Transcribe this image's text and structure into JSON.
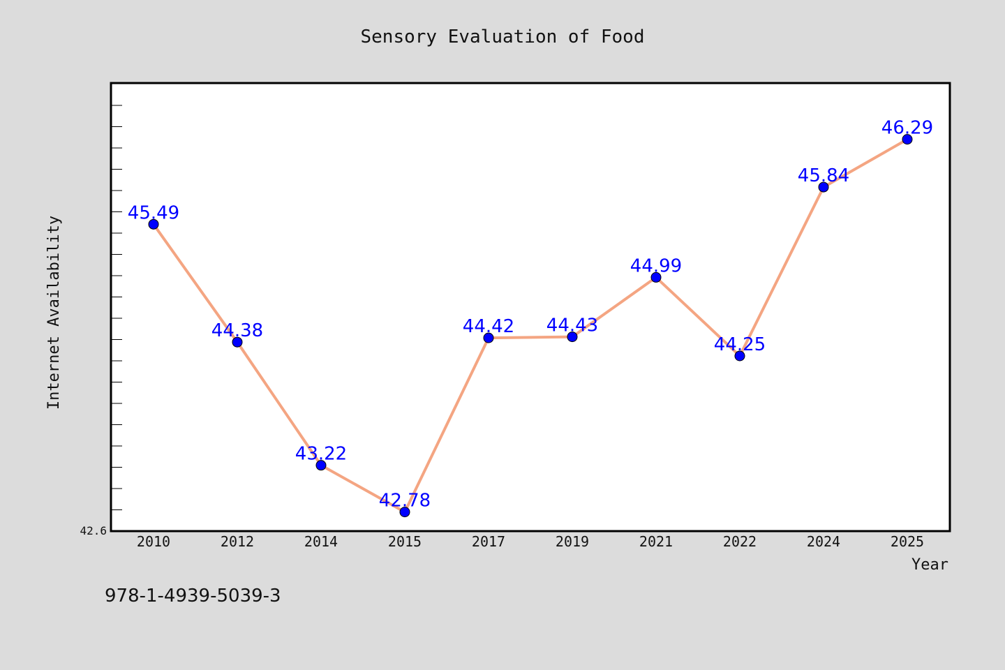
{
  "chart_data": {
    "type": "line",
    "title": "Sensory Evaluation of Food",
    "xlabel": "Year",
    "ylabel": "Internet Availability",
    "categories": [
      "2010",
      "2012",
      "2014",
      "2015",
      "2017",
      "2019",
      "2021",
      "2022",
      "2024",
      "2025"
    ],
    "series": [
      {
        "values": [
          45.49,
          44.38,
          43.22,
          42.78,
          44.42,
          44.43,
          44.99,
          44.25,
          45.84,
          46.29
        ],
        "data_labels": [
          "45.49",
          "44.38",
          "43.22",
          "42.78",
          "44.42",
          "44.43",
          "44.99",
          "44.25",
          "45.84",
          "46.29"
        ],
        "line_color": "#f4a582",
        "marker_color": "#0000ff"
      }
    ],
    "ylim": [
      42.6,
      46.82
    ],
    "y_tick_labels": [
      "42.6"
    ],
    "grid": false,
    "legend": false
  },
  "footer": {
    "isbn": "978-1-4939-5039-3"
  },
  "colors": {
    "background": "#dcdcdc",
    "plot_background": "#ffffff",
    "data_label": "#0000ff"
  }
}
